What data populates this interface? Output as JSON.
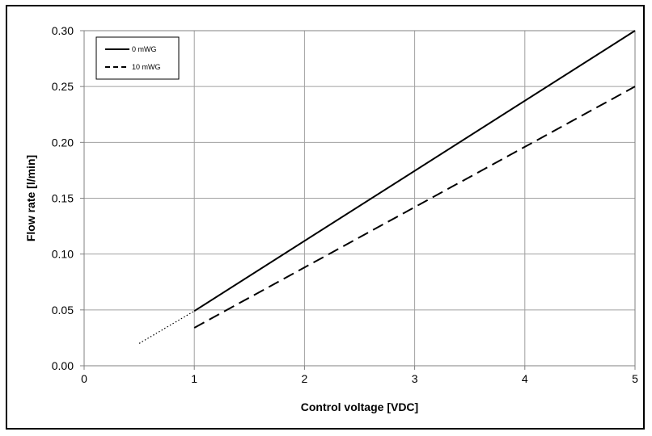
{
  "chart_data": {
    "type": "line",
    "title": "",
    "xlabel": "Control voltage [VDC]",
    "ylabel": "Flow rate [l/min]",
    "xlim": [
      0,
      5
    ],
    "ylim": [
      0,
      0.3
    ],
    "x_ticks": [
      "0",
      "1",
      "2",
      "3",
      "4",
      "5"
    ],
    "y_ticks": [
      "0.00",
      "0.05",
      "0.10",
      "0.15",
      "0.20",
      "0.25",
      "0.30"
    ],
    "grid": true,
    "legend_position": "top-left",
    "series": [
      {
        "name": "0 mWG",
        "line_style": "solid",
        "color": "#000000",
        "x": [
          1,
          5
        ],
        "y": [
          0.049,
          0.3
        ]
      },
      {
        "name": "10 mWG",
        "line_style": "dashed",
        "color": "#000000",
        "x": [
          1,
          5
        ],
        "y": [
          0.034,
          0.25
        ]
      },
      {
        "line_style": "dotted",
        "color": "#000000",
        "x": [
          0.5,
          1
        ],
        "y": [
          0.02,
          0.049
        ]
      }
    ]
  }
}
